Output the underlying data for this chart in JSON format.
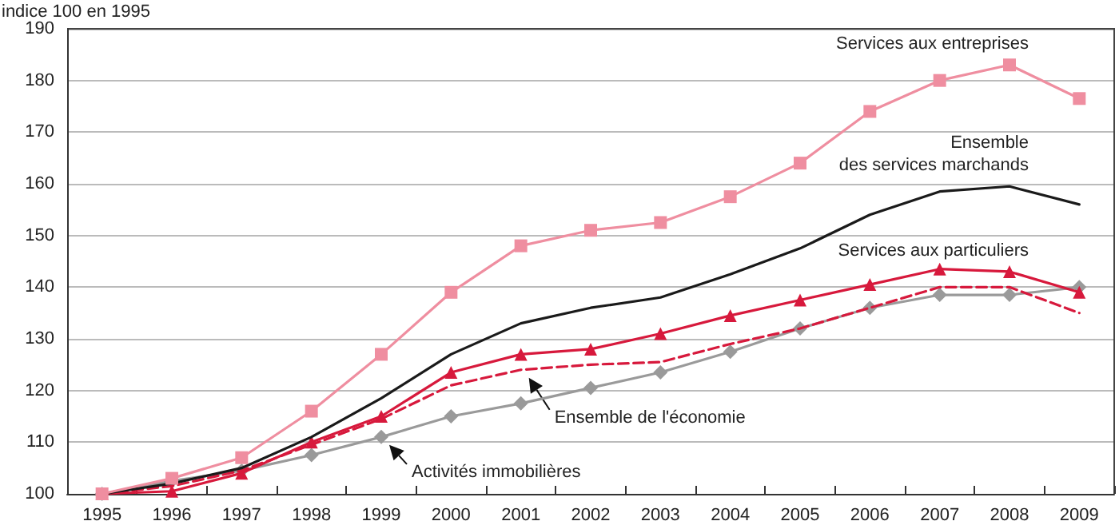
{
  "chart_data": {
    "type": "line",
    "ylabel": "indice 100 en 1995",
    "categories": [
      "1995",
      "1996",
      "1997",
      "1998",
      "1999",
      "2000",
      "2001",
      "2002",
      "2003",
      "2004",
      "2005",
      "2006",
      "2007",
      "2008",
      "2009"
    ],
    "series": [
      {
        "color": "#ef8ea0",
        "marker": "square",
        "line_style": "solid",
        "values": [
          100,
          103,
          107,
          116,
          127,
          139,
          148,
          151,
          152.5,
          157.5,
          164,
          174,
          180,
          183,
          176.5
        ]
      },
      {
        "color": "#1a1a1a",
        "marker": "none",
        "line_style": "solid",
        "values": [
          100,
          102,
          105,
          111,
          118.5,
          127,
          133,
          136,
          138,
          142.5,
          147.5,
          154,
          158.5,
          159.5,
          156
        ]
      },
      {
        "color": "#d7193c",
        "marker": "triangle",
        "line_style": "solid",
        "values": [
          100,
          100.5,
          104,
          110,
          115,
          123.5,
          127,
          128,
          131,
          134.5,
          137.5,
          140.5,
          143.5,
          143,
          139
        ]
      },
      {
        "color": "#d7193c",
        "marker": "none",
        "line_style": "dashed",
        "values": [
          100,
          101.5,
          104.5,
          109.5,
          114.5,
          121,
          124,
          125,
          125.5,
          129,
          132,
          136,
          140,
          140,
          135
        ]
      },
      {
        "color": "#9a9a9a",
        "marker": "diamond",
        "line_style": "solid",
        "values": [
          100,
          102.5,
          104.5,
          107.5,
          111,
          115,
          117.5,
          120.5,
          123.5,
          127.5,
          132,
          136,
          138.5,
          138.5,
          140
        ]
      }
    ],
    "ylim": [
      100,
      190
    ],
    "yticks": [
      100,
      110,
      120,
      130,
      140,
      150,
      160,
      170,
      180,
      190
    ],
    "grid": "y",
    "annotations": [
      {
        "text": "Services aux entreprises",
        "x": "2008",
        "y": 183
      },
      {
        "text": "Ensemble\ndes services marchands",
        "x": "2008",
        "y": 159.5
      },
      {
        "text": "Services aux particuliers",
        "x": "2008",
        "y": 143
      },
      {
        "text": "Ensemble de l'économie",
        "x": "2001",
        "y": 124
      },
      {
        "text": "Activités immobilières",
        "x": "1999",
        "y": 111
      }
    ]
  }
}
